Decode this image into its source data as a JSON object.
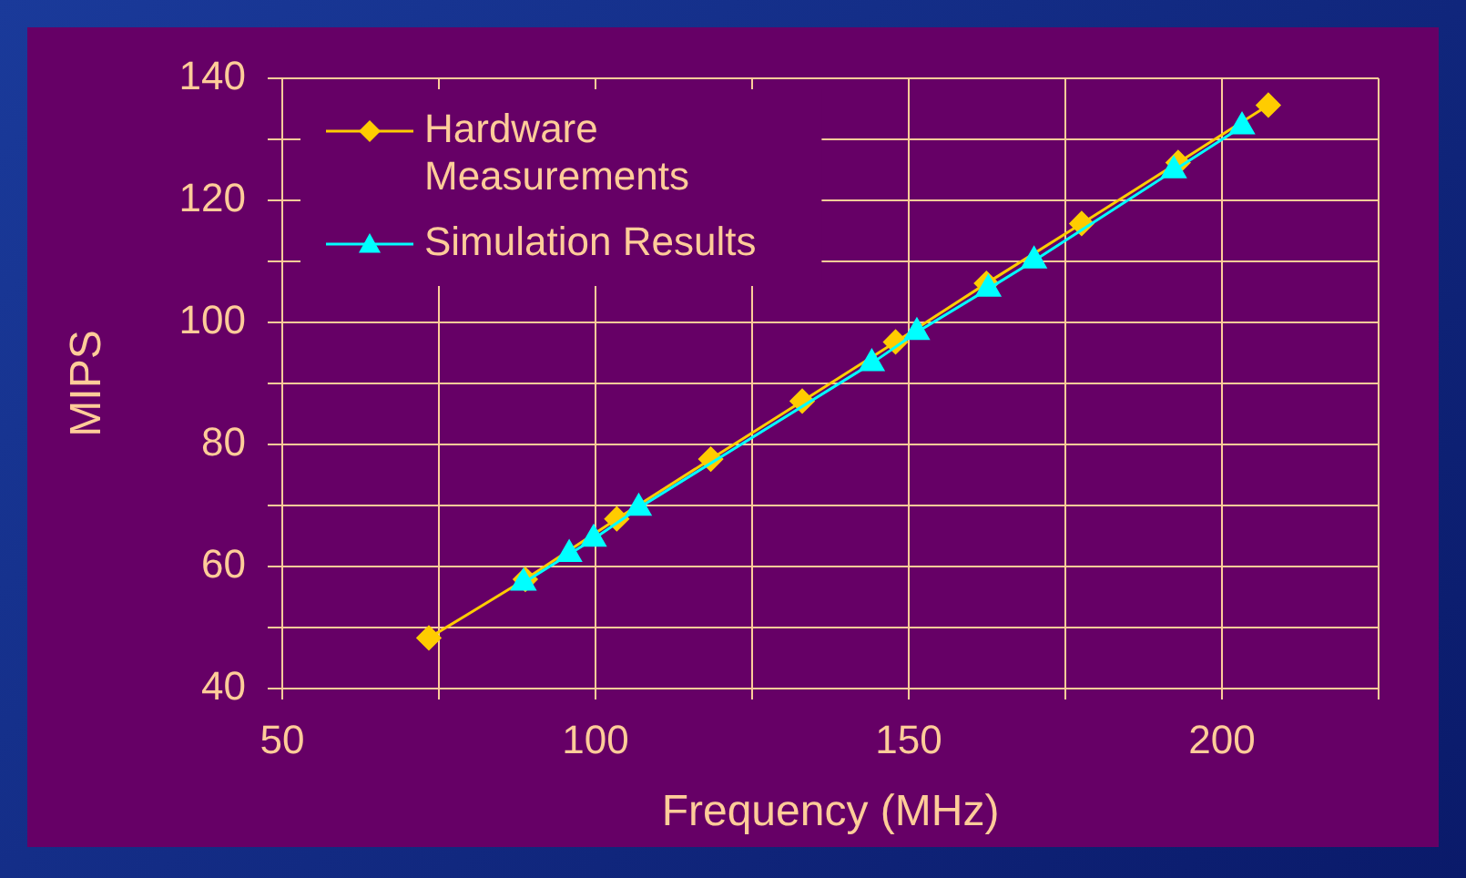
{
  "chart_data": {
    "type": "line",
    "xlabel": "Frequency (MHz)",
    "ylabel": "MIPS",
    "xlim": [
      50,
      225
    ],
    "xticks": [
      50,
      {
        "value": 75,
        "label": null
      },
      100,
      {
        "value": 125,
        "label": null
      },
      150,
      {
        "value": 175,
        "label": null
      },
      200,
      {
        "value": 225,
        "label": null
      }
    ],
    "ylim": [
      40,
      140
    ],
    "yticks": [
      40,
      {
        "value": 50,
        "label": null
      },
      60,
      {
        "value": 70,
        "label": null
      },
      80,
      {
        "value": 90,
        "label": null
      },
      100,
      {
        "value": 110,
        "label": null
      },
      120,
      {
        "value": 130,
        "label": null
      },
      140
    ],
    "grid": true,
    "legend": "top left",
    "series": [
      {
        "name": "Hardware Measurements",
        "color": "#ffcc00",
        "marker": "diamond",
        "x": [
          73.4,
          88.8,
          103.4,
          118.4,
          133.0,
          147.9,
          162.4,
          177.6,
          193.0,
          207.4
        ],
        "values": [
          48.3,
          57.9,
          67.8,
          77.6,
          87.1,
          96.8,
          106.4,
          116.2,
          126.2,
          135.6
        ]
      },
      {
        "name": "Simulation Results",
        "color": "#00ffff",
        "marker": "triangle",
        "x": [
          88.5,
          95.8,
          99.7,
          106.9,
          144.1,
          151.3,
          162.7,
          170.0,
          192.3,
          203.2
        ],
        "values": [
          57.3,
          62.0,
          64.5,
          69.6,
          93.3,
          98.4,
          105.5,
          110.1,
          124.9,
          132.1
        ]
      }
    ]
  }
}
